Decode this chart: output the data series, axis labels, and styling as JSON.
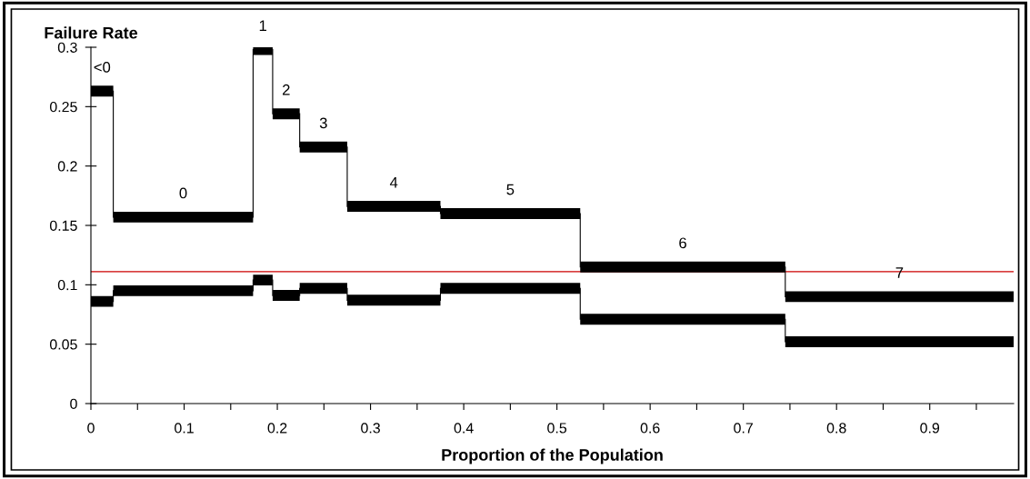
{
  "chart_data": {
    "type": "line",
    "xlabel": "Proportion of the Population",
    "ylabel": "Failure Rate",
    "xlim": [
      0,
      0.99
    ],
    "ylim": [
      0,
      0.3
    ],
    "xticks": [
      0,
      {
        "value": 0.05,
        "label": null
      },
      0.1,
      {
        "value": 0.15,
        "label": null
      },
      0.2,
      {
        "value": 0.25,
        "label": null
      },
      0.3,
      {
        "value": 0.35,
        "label": null
      },
      0.4,
      {
        "value": 0.45,
        "label": null
      },
      0.5,
      {
        "value": 0.55,
        "label": null
      },
      0.6,
      {
        "value": 0.65,
        "label": null
      },
      0.7,
      {
        "value": 0.75,
        "label": null
      },
      0.8,
      {
        "value": 0.85,
        "label": null
      },
      0.9,
      {
        "value": 0.95,
        "label": null
      }
    ],
    "yticks": [
      0,
      0.05,
      0.1,
      0.15,
      0.2,
      0.25,
      0.3
    ],
    "grid": false,
    "legend": false,
    "marker": "none",
    "series": [
      {
        "color": "#000000",
        "x": [
          0,
          0.024,
          0.024,
          0.174,
          0.174,
          0.195,
          0.195,
          0.224,
          0.224,
          0.275,
          0.275,
          0.375,
          0.375,
          0.525,
          0.525,
          0.745,
          0.745,
          0.99
        ],
        "values": [
          0.263,
          0.263,
          0.157,
          0.157,
          0.298,
          0.298,
          0.244,
          0.244,
          0.216,
          0.216,
          0.166,
          0.166,
          0.16,
          0.16,
          0.115,
          0.115,
          0.09,
          0.09
        ]
      },
      {
        "color": "#000000",
        "x": [
          0,
          0.024,
          0.024,
          0.174,
          0.174,
          0.195,
          0.195,
          0.224,
          0.224,
          0.275,
          0.275,
          0.375,
          0.375,
          0.525,
          0.525,
          0.745,
          0.745,
          0.99
        ],
        "values": [
          0.086,
          0.086,
          0.095,
          0.095,
          0.104,
          0.104,
          0.091,
          0.091,
          0.097,
          0.097,
          0.087,
          0.087,
          0.097,
          0.097,
          0.071,
          0.071,
          0.052,
          0.052
        ]
      }
    ],
    "ref_lines": [
      {
        "axis": "y",
        "value": 0.111,
        "color": "#cc0000"
      }
    ],
    "annotations": [
      {
        "text": "<0",
        "x": 0.012,
        "y": 0.263
      },
      {
        "text": "0",
        "x": 0.099,
        "y": 0.157
      },
      {
        "text": "1",
        "x": 0.1845,
        "y": 0.298
      },
      {
        "text": "2",
        "x": 0.2095,
        "y": 0.244
      },
      {
        "text": "3",
        "x": 0.2495,
        "y": 0.216
      },
      {
        "text": "4",
        "x": 0.325,
        "y": 0.166
      },
      {
        "text": "5",
        "x": 0.45,
        "y": 0.16
      },
      {
        "text": "6",
        "x": 0.635,
        "y": 0.115
      },
      {
        "text": "7",
        "x": 0.8675,
        "y": 0.09
      }
    ]
  }
}
